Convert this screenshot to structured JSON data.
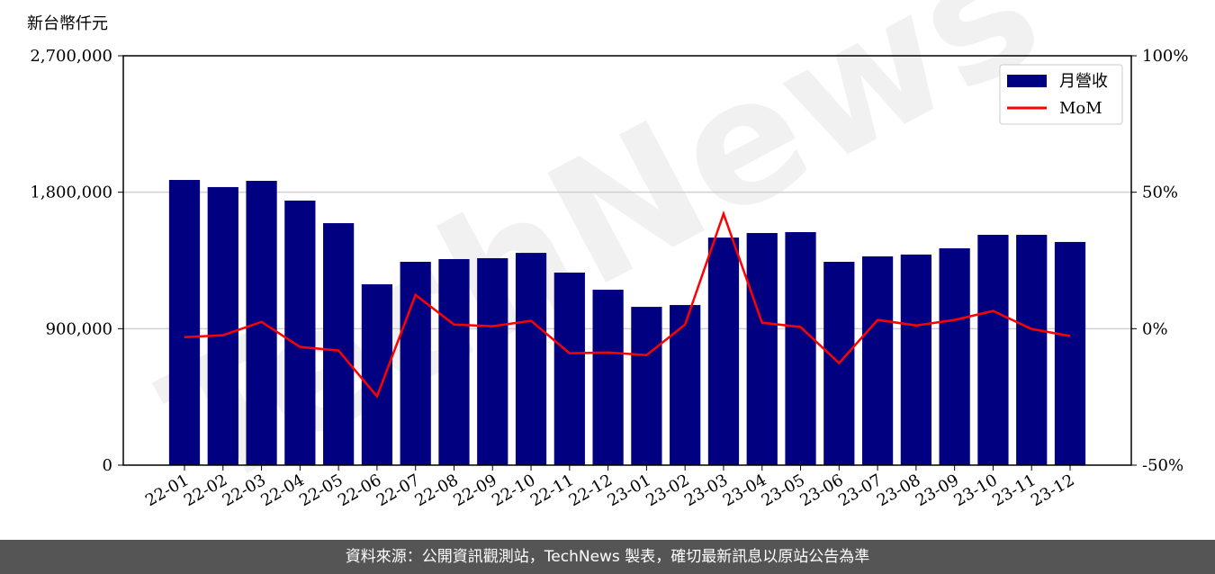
{
  "chart_data": {
    "type": "bar-line",
    "y_label": "新台幣仟元",
    "watermark": "TechNews",
    "categories": [
      "22-01",
      "22-02",
      "22-03",
      "22-04",
      "22-05",
      "22-06",
      "22-07",
      "22-08",
      "22-09",
      "22-10",
      "22-11",
      "22-12",
      "23-01",
      "23-02",
      "23-03",
      "23-04",
      "23-05",
      "23-06",
      "23-07",
      "23-08",
      "23-09",
      "23-10",
      "23-11",
      "23-12"
    ],
    "series": [
      {
        "name": "月營收",
        "type": "bar",
        "color": "#000080",
        "values": [
          1881000,
          1834000,
          1875000,
          1745000,
          1596000,
          1193000,
          1341000,
          1359000,
          1365000,
          1400000,
          1270000,
          1157000,
          1044000,
          1056000,
          1501000,
          1531000,
          1537000,
          1341000,
          1377000,
          1389000,
          1430000,
          1519000,
          1519000,
          1472000
        ]
      },
      {
        "name": "MoM",
        "type": "line",
        "axis": "y2",
        "color": "#ff0000",
        "values": [
          -3.1,
          -2.4,
          2.5,
          -6.7,
          -8.0,
          -24.8,
          12.4,
          1.5,
          0.9,
          2.9,
          -9.0,
          -8.7,
          -9.7,
          1.5,
          42.1,
          2.2,
          0.6,
          -12.6,
          3.2,
          1.2,
          3.2,
          6.5,
          -0.1,
          -2.7
        ]
      }
    ],
    "ylim": [
      0,
      2700000
    ],
    "yticks": [
      0,
      {
        "value": 900000,
        "label": "900,000"
      },
      {
        "value": 1800000,
        "label": "1,800,000"
      },
      {
        "value": 2700000,
        "label": "2,700,000"
      }
    ],
    "y2lim": [
      -50,
      100
    ],
    "y2ticks": [
      {
        "value": -50,
        "label": "-50%"
      },
      {
        "value": 0,
        "label": "0%"
      },
      {
        "value": 50,
        "label": "50%"
      },
      {
        "value": 100,
        "label": "100%"
      }
    ],
    "grid": true,
    "legend": "upper right",
    "footer": "資料來源：公開資訊觀測站，TechNews 製表，確切最新訊息以原站公告為準"
  }
}
